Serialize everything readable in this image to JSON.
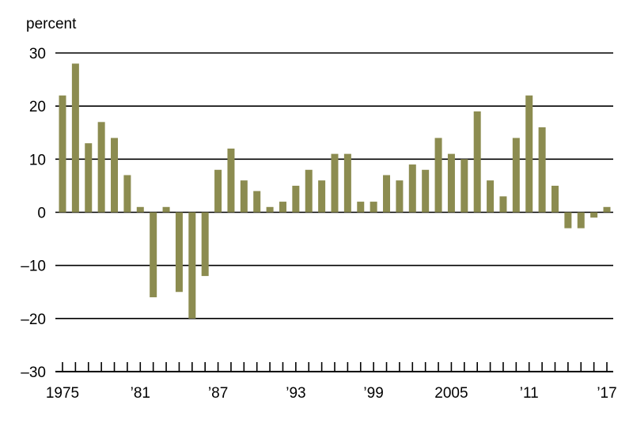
{
  "chart_data": {
    "type": "bar",
    "ylabel": "percent",
    "ylim": [
      -30,
      30
    ],
    "yticks": [
      30,
      20,
      10,
      0,
      -10,
      -20,
      -30
    ],
    "ytick_labels": [
      "30",
      "20",
      "10",
      "0",
      "–10",
      "–20",
      "–30"
    ],
    "grid": true,
    "bar_color": "#8c8c50",
    "categories": [
      1975,
      1976,
      1977,
      1978,
      1979,
      1980,
      1981,
      1982,
      1983,
      1984,
      1985,
      1986,
      1987,
      1988,
      1989,
      1990,
      1991,
      1992,
      1993,
      1994,
      1995,
      1996,
      1997,
      1998,
      1999,
      2000,
      2001,
      2002,
      2003,
      2004,
      2005,
      2006,
      2007,
      2008,
      2009,
      2010,
      2011,
      2012,
      2013,
      2014,
      2015,
      2016,
      2017
    ],
    "values": [
      22,
      28,
      13,
      17,
      14,
      7,
      1,
      -16,
      1,
      -15,
      -20,
      -12,
      8,
      12,
      6,
      4,
      1,
      2,
      5,
      8,
      6,
      11,
      11,
      2,
      2,
      7,
      6,
      9,
      8,
      14,
      11,
      10,
      19,
      6,
      3,
      14,
      22,
      16,
      5,
      -3,
      -3,
      -1,
      1
    ],
    "xtick_labels": [
      {
        "year": 1975,
        "label": "1975"
      },
      {
        "year": 1981,
        "label": "’81"
      },
      {
        "year": 1987,
        "label": "’87"
      },
      {
        "year": 1993,
        "label": "’93"
      },
      {
        "year": 1999,
        "label": "’99"
      },
      {
        "year": 2005,
        "label": "2005"
      },
      {
        "year": 2011,
        "label": "’11"
      },
      {
        "year": 2017,
        "label": "’17"
      }
    ]
  }
}
